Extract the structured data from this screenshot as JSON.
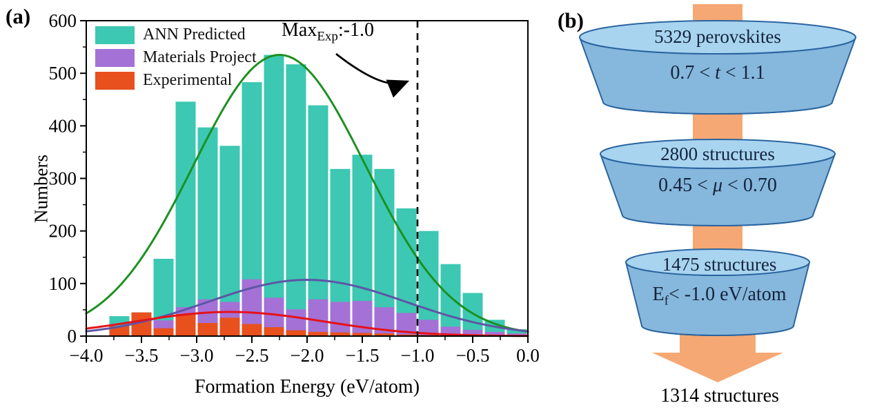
{
  "panel_a": {
    "label": "(a)",
    "ylabel": "Numbers",
    "xlabel": "Formation Energy (eV/atom)",
    "legend": [
      {
        "label": "ANN Predicted",
        "color": "#3CC8B2"
      },
      {
        "label": "Materials Project",
        "color": "#A472D6"
      },
      {
        "label": "Experimental",
        "color": "#E8501E"
      }
    ],
    "annotation": {
      "prefix": "Max",
      "sub": "Exp",
      "suffix": ":-1.0"
    },
    "xtick_labels": [
      "−4.0",
      "−3.5",
      "−3.0",
      "−2.5",
      "−2.0",
      "−1.5",
      "−1.0",
      "−0.5",
      "0.0"
    ],
    "ytick_labels": [
      "0",
      "100",
      "200",
      "300",
      "400",
      "500",
      "600"
    ]
  },
  "chart_data": {
    "type": "bar",
    "subtype": "overlaid-histogram-with-gaussian-fits",
    "title": "",
    "xlabel": "Formation Energy (eV/atom)",
    "ylabel": "Numbers",
    "xlim": [
      -4.0,
      0.0
    ],
    "ylim": [
      0,
      600
    ],
    "grid": false,
    "legend_position": "top-left",
    "bin_width": 0.2,
    "categories": [
      -3.7,
      -3.5,
      -3.3,
      -3.1,
      -2.9,
      -2.7,
      -2.5,
      -2.3,
      -2.1,
      -1.9,
      -1.7,
      -1.5,
      -1.3,
      -1.1,
      -0.9,
      -0.7,
      -0.5,
      -0.3,
      -0.1
    ],
    "series": [
      {
        "name": "ANN Predicted",
        "color": "#3CC8B2",
        "values": [
          38,
          45,
          147,
          446,
          397,
          362,
          483,
          535,
          517,
          439,
          318,
          345,
          318,
          243,
          200,
          137,
          82,
          31,
          13
        ]
      },
      {
        "name": "Materials Project",
        "color": "#A472D6",
        "values": [
          0,
          10,
          30,
          55,
          70,
          65,
          108,
          73,
          51,
          70,
          65,
          67,
          55,
          44,
          31,
          18,
          12,
          8,
          5
        ]
      },
      {
        "name": "Experimental",
        "color": "#E8501E",
        "values": [
          19,
          45,
          15,
          42,
          25,
          35,
          23,
          17,
          11,
          8,
          7,
          6,
          5,
          3,
          2,
          0,
          0,
          0,
          0
        ]
      }
    ],
    "fit_curves": [
      {
        "name": "ANN Predicted fit",
        "color": "#1C9020",
        "amplitude": 535,
        "mean": -2.25,
        "sigma": 0.78
      },
      {
        "name": "Materials Project fit",
        "color": "#5F55A5",
        "amplitude": 107,
        "mean": -2.0,
        "sigma": 0.9
      },
      {
        "name": "Experimental fit",
        "color": "#E41219",
        "amplitude": 46,
        "mean": -2.7,
        "sigma": 0.85
      }
    ],
    "dashed_line_x": -1.0,
    "annotation_text": "Max_Exp:-1.0",
    "xticks_major_step": 0.5,
    "xticks_minor_step": 0.25,
    "yticks_major_step": 100,
    "yticks_minor_step": 50
  },
  "panel_b": {
    "label": "(b)",
    "stages": [
      {
        "line1": "5329 perovskites",
        "line2_pre": "0.7 < ",
        "line2_var": "t",
        "line2_post": " < 1.1"
      },
      {
        "line1": "2800 structures",
        "line2_pre": "0.45 < ",
        "line2_var": "μ",
        "line2_post": " < 0.70"
      },
      {
        "line1": "1475 structures",
        "line2_pre": "E",
        "line2_sub": "f",
        "line2_post": "< -1.0 eV/atom"
      }
    ],
    "final_text": "1314 structures",
    "colors": {
      "disk_light": "#A8D4F0",
      "disk_body": "#86B7DC",
      "disk_stroke": "#2A649F",
      "arrow_orange": "#F5A873"
    }
  }
}
